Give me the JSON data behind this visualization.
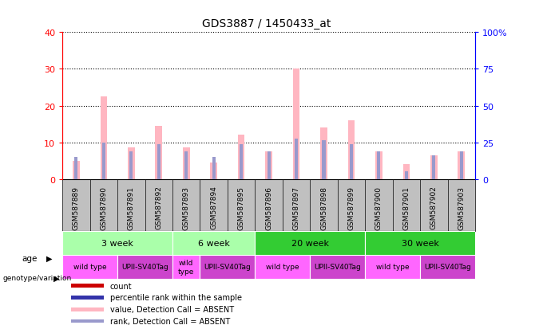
{
  "title": "GDS3887 / 1450433_at",
  "samples": [
    "GSM587889",
    "GSM587890",
    "GSM587891",
    "GSM587892",
    "GSM587893",
    "GSM587894",
    "GSM587895",
    "GSM587896",
    "GSM587897",
    "GSM587898",
    "GSM587899",
    "GSM587900",
    "GSM587901",
    "GSM587902",
    "GSM587903"
  ],
  "value_bars": [
    5.0,
    22.5,
    8.5,
    14.5,
    8.5,
    4.5,
    12.0,
    7.5,
    30.0,
    14.0,
    16.0,
    7.5,
    4.0,
    6.5,
    7.5
  ],
  "rank_bars": [
    6.0,
    10.0,
    7.5,
    9.5,
    7.5,
    6.0,
    9.5,
    7.5,
    11.0,
    10.5,
    9.5,
    7.5,
    2.0,
    6.5,
    7.5
  ],
  "ylim_left": [
    0,
    40
  ],
  "ylim_right": [
    0,
    100
  ],
  "yticks_left": [
    0,
    10,
    20,
    30,
    40
  ],
  "yticks_right": [
    0,
    25,
    50,
    75,
    100
  ],
  "yticklabels_right": [
    "0",
    "25",
    "50",
    "75",
    "100%"
  ],
  "color_value": "#FFB6C1",
  "color_rank": "#9999CC",
  "color_value_dark": "#CC0000",
  "color_rank_dark": "#3333AA",
  "age_groups": [
    {
      "label": "3 week",
      "start": 0,
      "end": 4,
      "color": "#AAFFAA"
    },
    {
      "label": "6 week",
      "start": 4,
      "end": 7,
      "color": "#AAFFAA"
    },
    {
      "label": "20 week",
      "start": 7,
      "end": 11,
      "color": "#33CC33"
    },
    {
      "label": "30 week",
      "start": 11,
      "end": 15,
      "color": "#33CC33"
    }
  ],
  "genotype_groups": [
    {
      "label": "wild type",
      "start": 0,
      "end": 2,
      "color": "#FF66FF"
    },
    {
      "label": "UPII-SV40Tag",
      "start": 2,
      "end": 4,
      "color": "#CC44CC"
    },
    {
      "label": "wild\ntype",
      "start": 4,
      "end": 5,
      "color": "#FF66FF"
    },
    {
      "label": "UPII-SV40Tag",
      "start": 5,
      "end": 7,
      "color": "#CC44CC"
    },
    {
      "label": "wild type",
      "start": 7,
      "end": 9,
      "color": "#FF66FF"
    },
    {
      "label": "UPII-SV40Tag",
      "start": 9,
      "end": 11,
      "color": "#CC44CC"
    },
    {
      "label": "wild type",
      "start": 11,
      "end": 13,
      "color": "#FF66FF"
    },
    {
      "label": "UPII-SV40Tag",
      "start": 13,
      "end": 15,
      "color": "#CC44CC"
    }
  ],
  "legend_items": [
    {
      "label": "count",
      "color": "#CC0000"
    },
    {
      "label": "percentile rank within the sample",
      "color": "#3333AA"
    },
    {
      "label": "value, Detection Call = ABSENT",
      "color": "#FFB6C1"
    },
    {
      "label": "rank, Detection Call = ABSENT",
      "color": "#9999CC"
    }
  ],
  "bar_width": 0.25,
  "rank_bar_width": 0.12,
  "bg_color": "#FFFFFF",
  "sample_bg": "#C0C0C0"
}
